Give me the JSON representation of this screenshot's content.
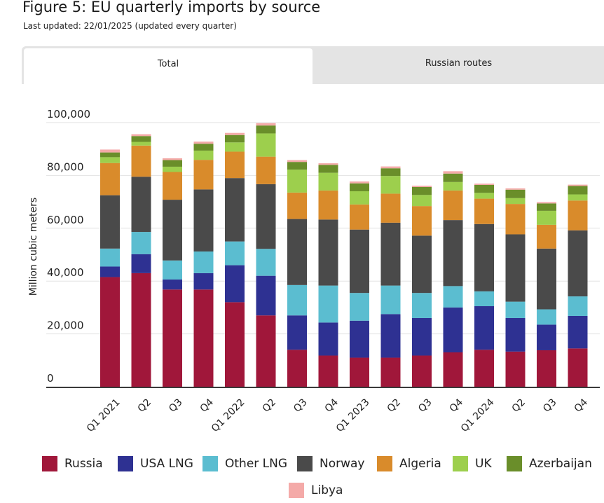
{
  "header": {
    "title": "Figure 5: EU quarterly imports by source",
    "subtitle": "Last updated: 22/01/2025 (updated every quarter)"
  },
  "tabs": [
    {
      "label": "Total",
      "active": true
    },
    {
      "label": "Russian routes",
      "active": false
    }
  ],
  "chart_data": {
    "type": "bar",
    "stacked": true,
    "title": "Figure 5: EU quarterly imports by source",
    "xlabel": "",
    "ylabel": "Million cubic meters",
    "ylim": [
      0,
      100000
    ],
    "yticks": [
      0,
      20000,
      40000,
      60000,
      80000,
      100000
    ],
    "ytick_labels": [
      "0",
      "20,000",
      "40,000",
      "60,000",
      "80,000",
      "100,000"
    ],
    "grid": true,
    "legend_position": "bottom",
    "categories": [
      "Q1 2021",
      "Q2",
      "Q3",
      "Q4",
      "Q1 2022",
      "Q2",
      "Q3",
      "Q4",
      "Q1 2023",
      "Q2",
      "Q3",
      "Q4",
      "Q1 2024",
      "Q2",
      "Q3",
      "Q4"
    ],
    "series": [
      {
        "name": "Russia",
        "color": "#a0173a",
        "values": [
          41500,
          43000,
          36800,
          36800,
          32000,
          27000,
          14000,
          11800,
          11000,
          11000,
          11800,
          13000,
          14000,
          13300,
          13800,
          14500
        ]
      },
      {
        "name": "USA LNG",
        "color": "#2e3192",
        "values": [
          4000,
          7200,
          3800,
          6200,
          14000,
          15000,
          13000,
          12500,
          14000,
          16500,
          14200,
          17000,
          16500,
          12700,
          9700,
          12300
        ]
      },
      {
        "name": "Other LNG",
        "color": "#5bbdd0",
        "values": [
          6800,
          8400,
          7200,
          8200,
          9000,
          10200,
          11500,
          14000,
          10500,
          10800,
          9500,
          8100,
          5600,
          6200,
          5800,
          7400
        ]
      },
      {
        "name": "Norway",
        "color": "#4a4a4a",
        "values": [
          20200,
          20900,
          23000,
          23500,
          24000,
          24500,
          25000,
          25000,
          24000,
          23800,
          21700,
          25000,
          25500,
          25500,
          23000,
          25000
        ]
      },
      {
        "name": "Algeria",
        "color": "#d98b2b",
        "values": [
          12200,
          11800,
          10500,
          11200,
          10000,
          10400,
          10000,
          11000,
          9500,
          11000,
          11200,
          11200,
          9600,
          11500,
          9000,
          11300
        ]
      },
      {
        "name": "UK",
        "color": "#9dcf4d",
        "values": [
          2200,
          1400,
          2000,
          3500,
          3500,
          8800,
          8700,
          6700,
          5000,
          6700,
          4200,
          3200,
          2200,
          2200,
          5300,
          2300
        ]
      },
      {
        "name": "Azerbaijan",
        "color": "#6a8e2a",
        "values": [
          1800,
          2200,
          2500,
          2600,
          2800,
          3000,
          2900,
          3000,
          3000,
          2900,
          3000,
          3200,
          3000,
          3200,
          2800,
          3200
        ]
      },
      {
        "name": "Libya",
        "color": "#f4aaa8",
        "values": [
          1100,
          700,
          700,
          800,
          800,
          900,
          700,
          600,
          700,
          700,
          500,
          900,
          500,
          500,
          500,
          500
        ]
      }
    ]
  }
}
